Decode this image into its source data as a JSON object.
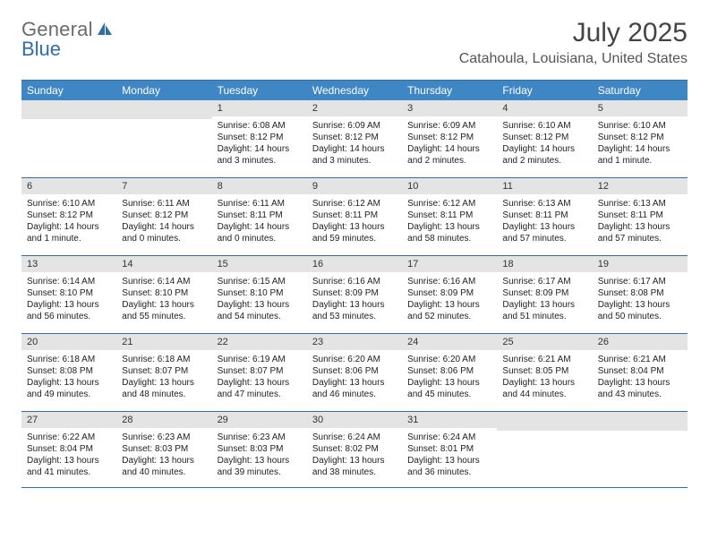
{
  "logo": {
    "word1": "General",
    "word2": "Blue"
  },
  "title": "July 2025",
  "location": "Catahoula, Louisiana, United States",
  "colors": {
    "brand_blue": "#3f86c5",
    "rule_blue": "#2f6ea8",
    "gray_bar": "#e4e4e4",
    "text": "#222222",
    "logo_gray": "#6b6b6b"
  },
  "day_names": [
    "Sunday",
    "Monday",
    "Tuesday",
    "Wednesday",
    "Thursday",
    "Friday",
    "Saturday"
  ],
  "weeks": [
    [
      null,
      null,
      {
        "n": "1",
        "sr": "Sunrise: 6:08 AM",
        "ss": "Sunset: 8:12 PM",
        "dl1": "Daylight: 14 hours",
        "dl2": "and 3 minutes."
      },
      {
        "n": "2",
        "sr": "Sunrise: 6:09 AM",
        "ss": "Sunset: 8:12 PM",
        "dl1": "Daylight: 14 hours",
        "dl2": "and 3 minutes."
      },
      {
        "n": "3",
        "sr": "Sunrise: 6:09 AM",
        "ss": "Sunset: 8:12 PM",
        "dl1": "Daylight: 14 hours",
        "dl2": "and 2 minutes."
      },
      {
        "n": "4",
        "sr": "Sunrise: 6:10 AM",
        "ss": "Sunset: 8:12 PM",
        "dl1": "Daylight: 14 hours",
        "dl2": "and 2 minutes."
      },
      {
        "n": "5",
        "sr": "Sunrise: 6:10 AM",
        "ss": "Sunset: 8:12 PM",
        "dl1": "Daylight: 14 hours",
        "dl2": "and 1 minute."
      }
    ],
    [
      {
        "n": "6",
        "sr": "Sunrise: 6:10 AM",
        "ss": "Sunset: 8:12 PM",
        "dl1": "Daylight: 14 hours",
        "dl2": "and 1 minute."
      },
      {
        "n": "7",
        "sr": "Sunrise: 6:11 AM",
        "ss": "Sunset: 8:12 PM",
        "dl1": "Daylight: 14 hours",
        "dl2": "and 0 minutes."
      },
      {
        "n": "8",
        "sr": "Sunrise: 6:11 AM",
        "ss": "Sunset: 8:11 PM",
        "dl1": "Daylight: 14 hours",
        "dl2": "and 0 minutes."
      },
      {
        "n": "9",
        "sr": "Sunrise: 6:12 AM",
        "ss": "Sunset: 8:11 PM",
        "dl1": "Daylight: 13 hours",
        "dl2": "and 59 minutes."
      },
      {
        "n": "10",
        "sr": "Sunrise: 6:12 AM",
        "ss": "Sunset: 8:11 PM",
        "dl1": "Daylight: 13 hours",
        "dl2": "and 58 minutes."
      },
      {
        "n": "11",
        "sr": "Sunrise: 6:13 AM",
        "ss": "Sunset: 8:11 PM",
        "dl1": "Daylight: 13 hours",
        "dl2": "and 57 minutes."
      },
      {
        "n": "12",
        "sr": "Sunrise: 6:13 AM",
        "ss": "Sunset: 8:11 PM",
        "dl1": "Daylight: 13 hours",
        "dl2": "and 57 minutes."
      }
    ],
    [
      {
        "n": "13",
        "sr": "Sunrise: 6:14 AM",
        "ss": "Sunset: 8:10 PM",
        "dl1": "Daylight: 13 hours",
        "dl2": "and 56 minutes."
      },
      {
        "n": "14",
        "sr": "Sunrise: 6:14 AM",
        "ss": "Sunset: 8:10 PM",
        "dl1": "Daylight: 13 hours",
        "dl2": "and 55 minutes."
      },
      {
        "n": "15",
        "sr": "Sunrise: 6:15 AM",
        "ss": "Sunset: 8:10 PM",
        "dl1": "Daylight: 13 hours",
        "dl2": "and 54 minutes."
      },
      {
        "n": "16",
        "sr": "Sunrise: 6:16 AM",
        "ss": "Sunset: 8:09 PM",
        "dl1": "Daylight: 13 hours",
        "dl2": "and 53 minutes."
      },
      {
        "n": "17",
        "sr": "Sunrise: 6:16 AM",
        "ss": "Sunset: 8:09 PM",
        "dl1": "Daylight: 13 hours",
        "dl2": "and 52 minutes."
      },
      {
        "n": "18",
        "sr": "Sunrise: 6:17 AM",
        "ss": "Sunset: 8:09 PM",
        "dl1": "Daylight: 13 hours",
        "dl2": "and 51 minutes."
      },
      {
        "n": "19",
        "sr": "Sunrise: 6:17 AM",
        "ss": "Sunset: 8:08 PM",
        "dl1": "Daylight: 13 hours",
        "dl2": "and 50 minutes."
      }
    ],
    [
      {
        "n": "20",
        "sr": "Sunrise: 6:18 AM",
        "ss": "Sunset: 8:08 PM",
        "dl1": "Daylight: 13 hours",
        "dl2": "and 49 minutes."
      },
      {
        "n": "21",
        "sr": "Sunrise: 6:18 AM",
        "ss": "Sunset: 8:07 PM",
        "dl1": "Daylight: 13 hours",
        "dl2": "and 48 minutes."
      },
      {
        "n": "22",
        "sr": "Sunrise: 6:19 AM",
        "ss": "Sunset: 8:07 PM",
        "dl1": "Daylight: 13 hours",
        "dl2": "and 47 minutes."
      },
      {
        "n": "23",
        "sr": "Sunrise: 6:20 AM",
        "ss": "Sunset: 8:06 PM",
        "dl1": "Daylight: 13 hours",
        "dl2": "and 46 minutes."
      },
      {
        "n": "24",
        "sr": "Sunrise: 6:20 AM",
        "ss": "Sunset: 8:06 PM",
        "dl1": "Daylight: 13 hours",
        "dl2": "and 45 minutes."
      },
      {
        "n": "25",
        "sr": "Sunrise: 6:21 AM",
        "ss": "Sunset: 8:05 PM",
        "dl1": "Daylight: 13 hours",
        "dl2": "and 44 minutes."
      },
      {
        "n": "26",
        "sr": "Sunrise: 6:21 AM",
        "ss": "Sunset: 8:04 PM",
        "dl1": "Daylight: 13 hours",
        "dl2": "and 43 minutes."
      }
    ],
    [
      {
        "n": "27",
        "sr": "Sunrise: 6:22 AM",
        "ss": "Sunset: 8:04 PM",
        "dl1": "Daylight: 13 hours",
        "dl2": "and 41 minutes."
      },
      {
        "n": "28",
        "sr": "Sunrise: 6:23 AM",
        "ss": "Sunset: 8:03 PM",
        "dl1": "Daylight: 13 hours",
        "dl2": "and 40 minutes."
      },
      {
        "n": "29",
        "sr": "Sunrise: 6:23 AM",
        "ss": "Sunset: 8:03 PM",
        "dl1": "Daylight: 13 hours",
        "dl2": "and 39 minutes."
      },
      {
        "n": "30",
        "sr": "Sunrise: 6:24 AM",
        "ss": "Sunset: 8:02 PM",
        "dl1": "Daylight: 13 hours",
        "dl2": "and 38 minutes."
      },
      {
        "n": "31",
        "sr": "Sunrise: 6:24 AM",
        "ss": "Sunset: 8:01 PM",
        "dl1": "Daylight: 13 hours",
        "dl2": "and 36 minutes."
      },
      null,
      null
    ]
  ]
}
